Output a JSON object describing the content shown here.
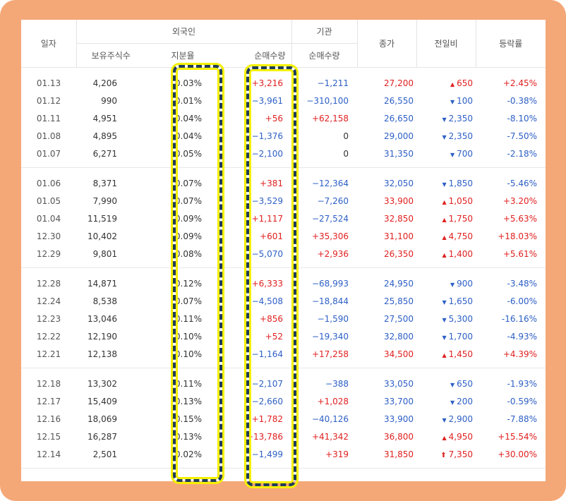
{
  "header": {
    "date": "일자",
    "foreign": "외국인",
    "institution": "기관",
    "close": "종가",
    "change": "전일비",
    "rate": "등락률",
    "holdings": "보유주식수",
    "share": "지분율",
    "foreign_net": "순매수량",
    "inst_net": "순매수량"
  },
  "colors": {
    "frame": "#f4a878",
    "highlight_border": "#1f3b5a",
    "highlight_glow": "#f4f000",
    "up": "#e02020",
    "down": "#2d5fc5"
  },
  "groups": [
    [
      {
        "date": "01.13",
        "hold": "4,206",
        "share": "0.03%",
        "fnet": "+3,216",
        "inet": "−1,211",
        "close": "27,200",
        "chg": "650",
        "dir": "up",
        "rate": "+2.45%"
      },
      {
        "date": "01.12",
        "hold": "990",
        "share": "0.01%",
        "fnet": "−3,961",
        "inet": "−310,100",
        "close": "26,550",
        "chg": "100",
        "dir": "down",
        "rate": "-0.38%"
      },
      {
        "date": "01.11",
        "hold": "4,951",
        "share": "0.04%",
        "fnet": "+56",
        "inet": "+62,158",
        "close": "26,650",
        "chg": "2,350",
        "dir": "down",
        "rate": "-8.10%"
      },
      {
        "date": "01.08",
        "hold": "4,895",
        "share": "0.04%",
        "fnet": "−1,376",
        "inet": "0",
        "close": "29,000",
        "chg": "2,350",
        "dir": "down",
        "rate": "-7.50%"
      },
      {
        "date": "01.07",
        "hold": "6,271",
        "share": "0.05%",
        "fnet": "−2,100",
        "inet": "0",
        "close": "31,350",
        "chg": "700",
        "dir": "down",
        "rate": "-2.18%"
      }
    ],
    [
      {
        "date": "01.06",
        "hold": "8,371",
        "share": "0.07%",
        "fnet": "+381",
        "inet": "−12,364",
        "close": "32,050",
        "chg": "1,850",
        "dir": "down",
        "rate": "-5.46%"
      },
      {
        "date": "01.05",
        "hold": "7,990",
        "share": "0.07%",
        "fnet": "−3,529",
        "inet": "−7,260",
        "close": "33,900",
        "chg": "1,050",
        "dir": "up",
        "rate": "+3.20%"
      },
      {
        "date": "01.04",
        "hold": "11,519",
        "share": "0.09%",
        "fnet": "+1,117",
        "inet": "−27,524",
        "close": "32,850",
        "chg": "1,750",
        "dir": "up",
        "rate": "+5.63%"
      },
      {
        "date": "12.30",
        "hold": "10,402",
        "share": "0.09%",
        "fnet": "+601",
        "inet": "+35,306",
        "close": "31,100",
        "chg": "4,750",
        "dir": "up",
        "rate": "+18.03%"
      },
      {
        "date": "12.29",
        "hold": "9,801",
        "share": "0.08%",
        "fnet": "−5,070",
        "inet": "+2,936",
        "close": "26,350",
        "chg": "1,400",
        "dir": "up",
        "rate": "+5.61%"
      }
    ],
    [
      {
        "date": "12.28",
        "hold": "14,871",
        "share": "0.12%",
        "fnet": "+6,333",
        "inet": "−68,993",
        "close": "24,950",
        "chg": "900",
        "dir": "down",
        "rate": "-3.48%"
      },
      {
        "date": "12.24",
        "hold": "8,538",
        "share": "0.07%",
        "fnet": "−4,508",
        "inet": "−18,844",
        "close": "25,850",
        "chg": "1,650",
        "dir": "down",
        "rate": "-6.00%"
      },
      {
        "date": "12.23",
        "hold": "13,046",
        "share": "0.11%",
        "fnet": "+856",
        "inet": "−1,590",
        "close": "27,500",
        "chg": "5,300",
        "dir": "down",
        "rate": "-16.16%"
      },
      {
        "date": "12.22",
        "hold": "12,190",
        "share": "0.10%",
        "fnet": "+52",
        "inet": "−19,340",
        "close": "32,800",
        "chg": "1,700",
        "dir": "down",
        "rate": "-4.93%"
      },
      {
        "date": "12.21",
        "hold": "12,138",
        "share": "0.10%",
        "fnet": "−1,164",
        "inet": "+17,258",
        "close": "34,500",
        "chg": "1,450",
        "dir": "up",
        "rate": "+4.39%"
      }
    ],
    [
      {
        "date": "12.18",
        "hold": "13,302",
        "share": "0.11%",
        "fnet": "−2,107",
        "inet": "−388",
        "close": "33,050",
        "chg": "650",
        "dir": "down",
        "rate": "-1.93%"
      },
      {
        "date": "12.17",
        "hold": "15,409",
        "share": "0.13%",
        "fnet": "−2,660",
        "inet": "+1,028",
        "close": "33,700",
        "chg": "200",
        "dir": "down",
        "rate": "-0.59%"
      },
      {
        "date": "12.16",
        "hold": "18,069",
        "share": "0.15%",
        "fnet": "+1,782",
        "inet": "−40,126",
        "close": "33,900",
        "chg": "2,900",
        "dir": "down",
        "rate": "-7.88%"
      },
      {
        "date": "12.15",
        "hold": "16,287",
        "share": "0.13%",
        "fnet": "+13,786",
        "inet": "+41,342",
        "close": "36,800",
        "chg": "4,950",
        "dir": "up",
        "rate": "+15.54%"
      },
      {
        "date": "12.14",
        "hold": "2,501",
        "share": "0.02%",
        "fnet": "−1,499",
        "inet": "+319",
        "close": "31,850",
        "chg": "7,350",
        "dir": "upper",
        "rate": "+30.00%"
      }
    ]
  ]
}
